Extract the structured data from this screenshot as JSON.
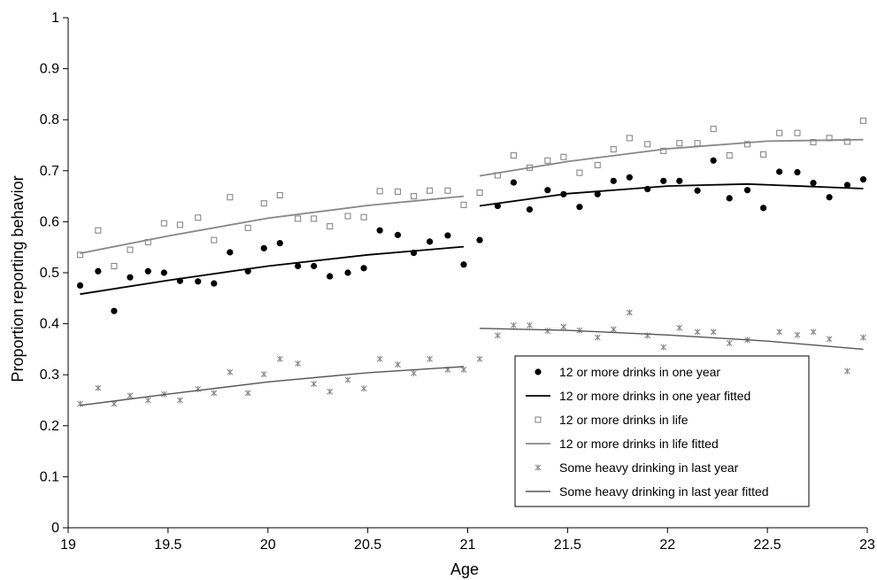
{
  "chart_data": {
    "type": "scatter",
    "title": "",
    "xlabel": "Age",
    "ylabel": "Proportion reporting behavior",
    "xlim": [
      19,
      23
    ],
    "ylim": [
      0,
      1
    ],
    "xticks": [
      "19",
      "19.5",
      "20",
      "20.5",
      "21",
      "21.5",
      "22",
      "22.5",
      "23"
    ],
    "yticks": [
      "0",
      "0.1",
      "0.2",
      "0.3",
      "0.4",
      "0.5",
      "0.6",
      "0.7",
      "0.8",
      "0.9",
      "1"
    ],
    "grid": false,
    "legend_position": "bottom-right",
    "series": [
      {
        "name": "12 or more drinks in one year",
        "kind": "points",
        "marker": "filled-circle",
        "color": "#000000",
        "x": [
          19.06,
          19.15,
          19.23,
          19.31,
          19.4,
          19.48,
          19.56,
          19.65,
          19.73,
          19.81,
          19.9,
          19.98,
          20.06,
          20.15,
          20.23,
          20.31,
          20.4,
          20.48,
          20.56,
          20.65,
          20.73,
          20.81,
          20.9,
          20.98,
          21.06,
          21.15,
          21.23,
          21.31,
          21.4,
          21.48,
          21.56,
          21.65,
          21.73,
          21.81,
          21.9,
          21.98,
          22.06,
          22.15,
          22.23,
          22.31,
          22.4,
          22.48,
          22.56,
          22.65,
          22.73,
          22.81,
          22.9,
          22.98
        ],
        "y": [
          0.475,
          0.503,
          0.425,
          0.491,
          0.503,
          0.5,
          0.484,
          0.483,
          0.479,
          0.54,
          0.503,
          0.548,
          0.558,
          0.513,
          0.513,
          0.493,
          0.5,
          0.509,
          0.583,
          0.574,
          0.539,
          0.561,
          0.573,
          0.516,
          0.564,
          0.631,
          0.677,
          0.624,
          0.662,
          0.654,
          0.629,
          0.654,
          0.68,
          0.687,
          0.664,
          0.68,
          0.68,
          0.661,
          0.72,
          0.646,
          0.662,
          0.627,
          0.698,
          0.697,
          0.676,
          0.648,
          0.672,
          0.683
        ]
      },
      {
        "name": "12 or more drinks in one year fitted",
        "kind": "line",
        "color": "#000000",
        "width": 1.8,
        "segments": [
          {
            "x": [
              19.06,
              19.5,
              20,
              20.5,
              20.98
            ],
            "y": [
              0.458,
              0.485,
              0.513,
              0.535,
              0.551
            ]
          },
          {
            "x": [
              21.06,
              21.5,
              22,
              22.4,
              22.98
            ],
            "y": [
              0.631,
              0.655,
              0.67,
              0.674,
              0.665
            ]
          }
        ]
      },
      {
        "name": "12 or more drinks in life",
        "kind": "points",
        "marker": "open-square",
        "color": "#888888",
        "x": [
          19.06,
          19.15,
          19.23,
          19.31,
          19.4,
          19.48,
          19.56,
          19.65,
          19.73,
          19.81,
          19.9,
          19.98,
          20.06,
          20.15,
          20.23,
          20.31,
          20.4,
          20.48,
          20.56,
          20.65,
          20.73,
          20.81,
          20.9,
          20.98,
          21.06,
          21.15,
          21.23,
          21.31,
          21.4,
          21.48,
          21.56,
          21.65,
          21.73,
          21.81,
          21.9,
          21.98,
          22.06,
          22.15,
          22.23,
          22.31,
          22.4,
          22.48,
          22.56,
          22.65,
          22.73,
          22.81,
          22.9,
          22.98
        ],
        "y": [
          0.535,
          0.583,
          0.513,
          0.545,
          0.56,
          0.597,
          0.594,
          0.608,
          0.564,
          0.648,
          0.588,
          0.636,
          0.652,
          0.606,
          0.606,
          0.591,
          0.611,
          0.609,
          0.66,
          0.659,
          0.65,
          0.661,
          0.661,
          0.633,
          0.657,
          0.691,
          0.73,
          0.706,
          0.72,
          0.727,
          0.696,
          0.711,
          0.742,
          0.764,
          0.752,
          0.739,
          0.754,
          0.754,
          0.782,
          0.73,
          0.752,
          0.732,
          0.774,
          0.774,
          0.756,
          0.764,
          0.757,
          0.798
        ]
      },
      {
        "name": "12 or more drinks in life fitted",
        "kind": "line",
        "color": "#888888",
        "width": 1.8,
        "segments": [
          {
            "x": [
              19.06,
              19.5,
              20,
              20.5,
              20.98
            ],
            "y": [
              0.538,
              0.572,
              0.607,
              0.632,
              0.65
            ]
          },
          {
            "x": [
              21.06,
              21.5,
              22,
              22.5,
              22.98
            ],
            "y": [
              0.69,
              0.718,
              0.743,
              0.758,
              0.761
            ]
          }
        ]
      },
      {
        "name": "Some heavy drinking in last year",
        "kind": "points",
        "marker": "asterisk",
        "color": "#888888",
        "x": [
          19.06,
          19.15,
          19.23,
          19.31,
          19.4,
          19.48,
          19.56,
          19.65,
          19.73,
          19.81,
          19.9,
          19.98,
          20.06,
          20.15,
          20.23,
          20.31,
          20.4,
          20.48,
          20.56,
          20.65,
          20.73,
          20.81,
          20.9,
          20.98,
          21.06,
          21.15,
          21.23,
          21.31,
          21.4,
          21.48,
          21.56,
          21.65,
          21.73,
          21.81,
          21.9,
          21.98,
          22.06,
          22.15,
          22.23,
          22.31,
          22.4,
          22.48,
          22.56,
          22.65,
          22.73,
          22.81,
          22.9,
          22.98
        ],
        "y": [
          0.243,
          0.274,
          0.243,
          0.259,
          0.25,
          0.262,
          0.25,
          0.272,
          0.264,
          0.305,
          0.264,
          0.301,
          0.331,
          0.322,
          0.282,
          0.267,
          0.29,
          0.273,
          0.331,
          0.32,
          0.303,
          0.331,
          0.31,
          0.31,
          0.331,
          0.377,
          0.397,
          0.397,
          0.386,
          0.394,
          0.387,
          0.373,
          0.389,
          0.422,
          0.377,
          0.354,
          0.392,
          0.384,
          0.384,
          0.362,
          0.368,
          0.307,
          0.384,
          0.378,
          0.384,
          0.37,
          0.307,
          0.373
        ]
      },
      {
        "name": "Some heavy drinking in last year fitted",
        "kind": "line",
        "color": "#555555",
        "width": 1.4,
        "segments": [
          {
            "x": [
              19.06,
              19.5,
              20,
              20.5,
              20.98
            ],
            "y": [
              0.24,
              0.262,
              0.286,
              0.304,
              0.316
            ]
          },
          {
            "x": [
              21.06,
              21.5,
              22,
              22.5,
              22.98
            ],
            "y": [
              0.391,
              0.387,
              0.378,
              0.366,
              0.35
            ]
          }
        ]
      }
    ]
  }
}
